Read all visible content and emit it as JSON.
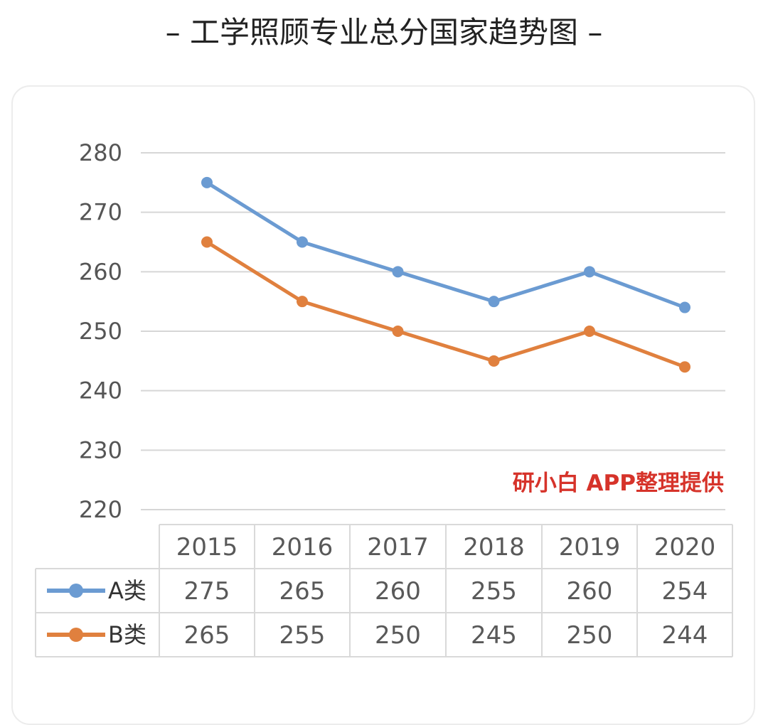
{
  "page": {
    "title": "– 工学照顾专业总分国家趋势图 –"
  },
  "watermark": "研小白 APP整理提供",
  "chart_data": {
    "type": "line",
    "categories": [
      "2015",
      "2016",
      "2017",
      "2018",
      "2019",
      "2020"
    ],
    "series": [
      {
        "name": "A类",
        "color": "#6b9bd2",
        "values": [
          275,
          265,
          260,
          255,
          260,
          254
        ]
      },
      {
        "name": "B类",
        "color": "#e0803e",
        "values": [
          265,
          255,
          250,
          245,
          250,
          244
        ]
      }
    ],
    "yticks": [
      220,
      230,
      240,
      250,
      260,
      270,
      280
    ],
    "ylim": [
      220,
      280
    ],
    "grid": true,
    "data_table": true,
    "legend": "in data table"
  }
}
